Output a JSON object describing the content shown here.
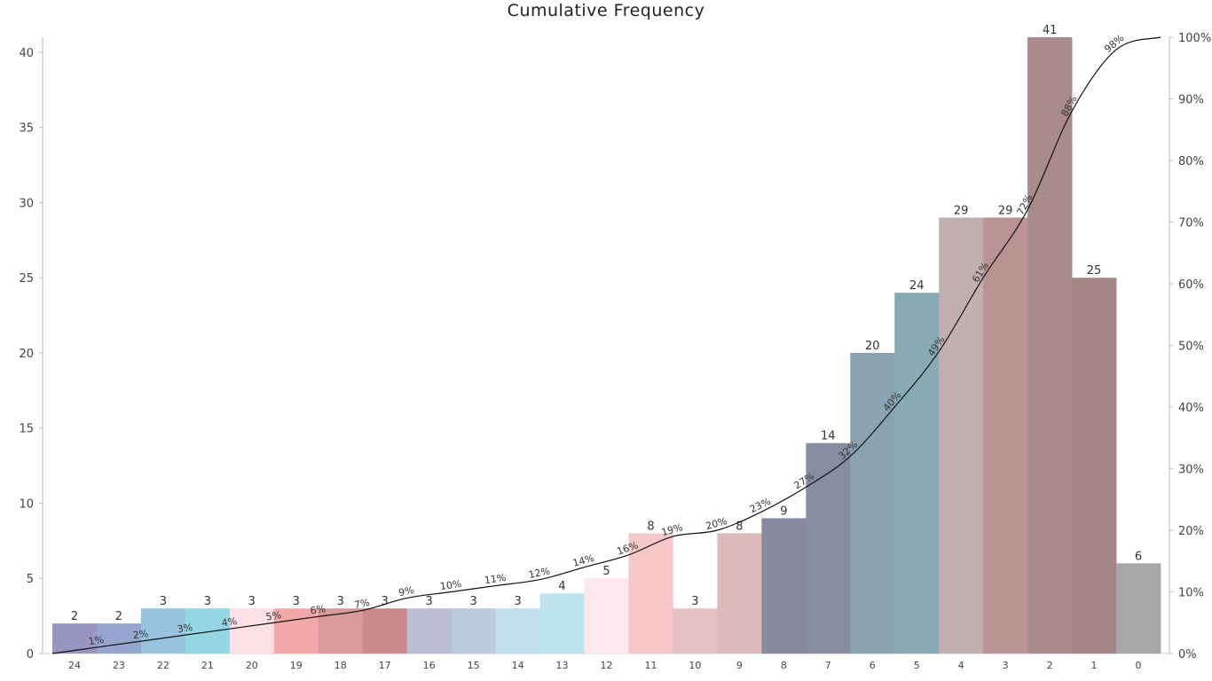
{
  "chart_data": {
    "type": "bar",
    "title": "Cumulative Frequency",
    "categories": [
      "24",
      "23",
      "22",
      "21",
      "20",
      "19",
      "18",
      "17",
      "16",
      "15",
      "14",
      "13",
      "12",
      "11",
      "10",
      "9",
      "8",
      "7",
      "6",
      "5",
      "4",
      "3",
      "2",
      "1",
      "0"
    ],
    "values": [
      2,
      2,
      3,
      3,
      3,
      3,
      3,
      3,
      3,
      3,
      3,
      4,
      5,
      8,
      3,
      8,
      9,
      14,
      20,
      24,
      29,
      29,
      41,
      25,
      6
    ],
    "colors": [
      "#9896c0",
      "#96a6cf",
      "#97c3e1",
      "#94d6e5",
      "#fde0e6",
      "#f4a7a9",
      "#d89a9a",
      "#c98a8b",
      "#bcbdd6",
      "#bdc9de",
      "#c2def0",
      "#bfe6f0",
      "#fde8ee",
      "#f7c8ca",
      "#e7c1c1",
      "#dbbaba",
      "#888ba0",
      "#868e9f",
      "#89a3b0",
      "#88aab2",
      "#c0b0b0",
      "#b89392",
      "#a98b8b",
      "#a38685",
      "#a6a8a9"
    ],
    "cumulative_percent": [
      1,
      2,
      3,
      4,
      5,
      6,
      7,
      9,
      10,
      11,
      12,
      14,
      16,
      19,
      20,
      23,
      27,
      32,
      40,
      49,
      61,
      72,
      88,
      98,
      100
    ],
    "cumulative_labels": [
      "1%",
      "2%",
      "3%",
      "4%",
      "5%",
      "6%",
      "7%",
      "9%",
      "10%",
      "11%",
      "12%",
      "14%",
      "16%",
      "19%",
      "20%",
      "23%",
      "27%",
      "32%",
      "40%",
      "49%",
      "61%",
      "72%",
      "88%",
      "98%"
    ],
    "ylim": [
      0,
      41
    ],
    "y_ticks": [
      0,
      5,
      10,
      15,
      20,
      25,
      30,
      35,
      40
    ],
    "y2lim": [
      0,
      100
    ],
    "y2_ticks": [
      "0%",
      "10%",
      "20%",
      "30%",
      "40%",
      "50%",
      "60%",
      "70%",
      "80%",
      "90%",
      "100%"
    ],
    "grid": false,
    "line_color": "#111111"
  }
}
